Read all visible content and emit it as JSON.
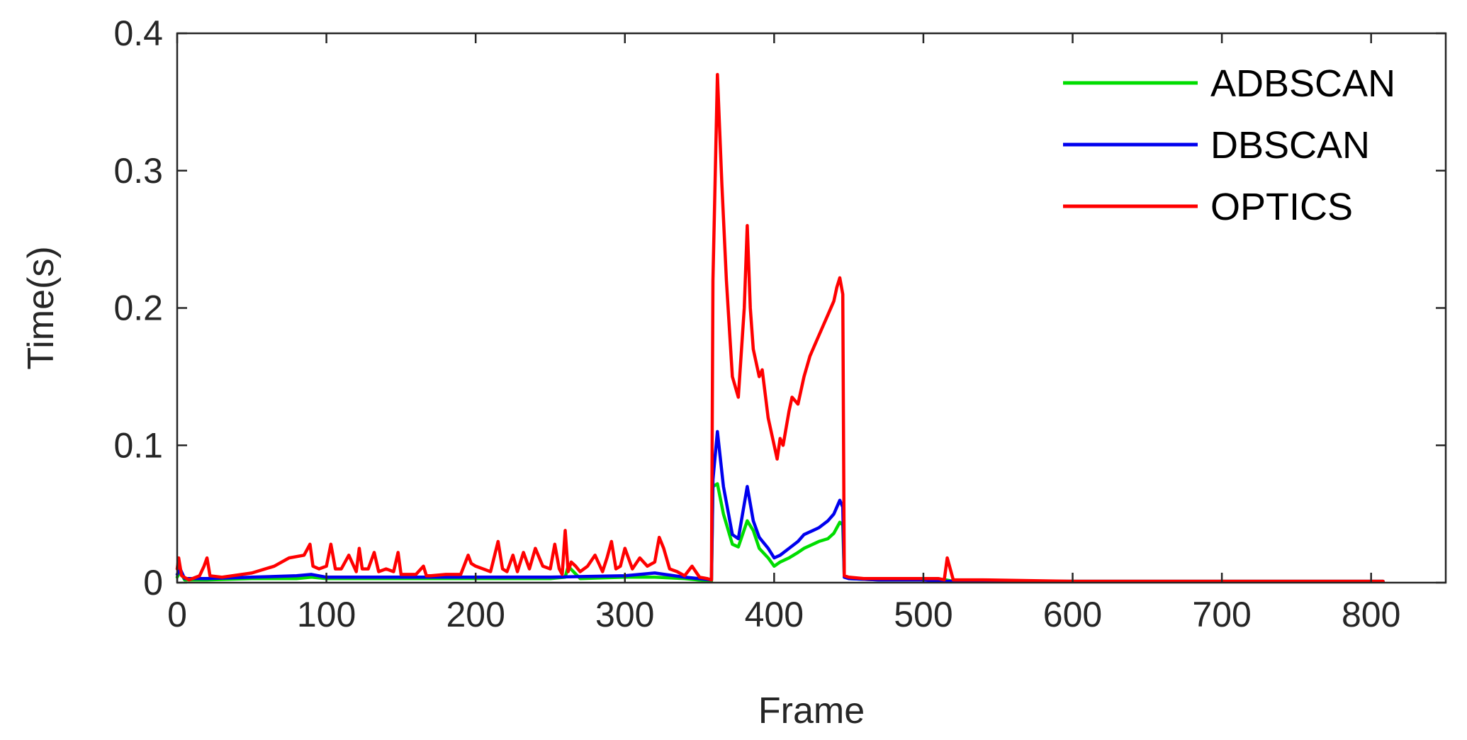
{
  "chart_data": {
    "type": "line",
    "title": "",
    "xlabel": "Frame",
    "ylabel": "Time(s)",
    "xlim": [
      0,
      850
    ],
    "ylim": [
      0,
      0.4
    ],
    "xticks": [
      0,
      100,
      200,
      300,
      400,
      500,
      600,
      700,
      800
    ],
    "yticks": [
      0,
      0.1,
      0.2,
      0.3,
      0.4
    ],
    "xtick_labels": [
      "0",
      "100",
      "200",
      "300",
      "400",
      "500",
      "600",
      "700",
      "800"
    ],
    "ytick_labels": [
      "0",
      "0.1",
      "0.2",
      "0.3",
      "0.4"
    ],
    "grid": false,
    "legend_position": "top-right",
    "series": [
      {
        "name": "ADBSCAN",
        "color": "#00dd00",
        "x": [
          0,
          2,
          5,
          20,
          50,
          80,
          90,
          100,
          150,
          200,
          250,
          260,
          262,
          270,
          300,
          320,
          340,
          358,
          359,
          362,
          366,
          372,
          376,
          382,
          386,
          390,
          396,
          400,
          404,
          410,
          416,
          420,
          426,
          430,
          436,
          440,
          444,
          446,
          447,
          450,
          470,
          500,
          515,
          520,
          600,
          700,
          808
        ],
        "y": [
          0.004,
          0.008,
          0.002,
          0.002,
          0.003,
          0.003,
          0.004,
          0.003,
          0.003,
          0.003,
          0.003,
          0.004,
          0.012,
          0.003,
          0.004,
          0.004,
          0.003,
          0.001,
          0.07,
          0.072,
          0.05,
          0.028,
          0.026,
          0.045,
          0.038,
          0.025,
          0.018,
          0.012,
          0.015,
          0.018,
          0.022,
          0.025,
          0.028,
          0.03,
          0.032,
          0.036,
          0.044,
          0.042,
          0.005,
          0.003,
          0.002,
          0.002,
          0.002,
          0.001,
          0.001,
          0.001,
          0.001
        ]
      },
      {
        "name": "DBSCAN",
        "color": "#0000ee",
        "x": [
          0,
          2,
          5,
          20,
          50,
          80,
          90,
          100,
          150,
          200,
          250,
          300,
          320,
          340,
          358,
          359,
          362,
          366,
          372,
          376,
          382,
          386,
          390,
          396,
          400,
          404,
          410,
          416,
          420,
          426,
          430,
          436,
          440,
          444,
          446,
          447,
          450,
          470,
          500,
          510,
          520,
          600,
          700,
          808
        ],
        "y": [
          0.006,
          0.01,
          0.003,
          0.003,
          0.004,
          0.005,
          0.006,
          0.004,
          0.004,
          0.004,
          0.004,
          0.005,
          0.007,
          0.004,
          0.002,
          0.075,
          0.11,
          0.07,
          0.035,
          0.032,
          0.07,
          0.045,
          0.033,
          0.025,
          0.018,
          0.02,
          0.025,
          0.03,
          0.035,
          0.038,
          0.04,
          0.045,
          0.05,
          0.06,
          0.055,
          0.004,
          0.003,
          0.002,
          0.002,
          0.001,
          0.001,
          0.001,
          0.001,
          0.001
        ]
      },
      {
        "name": "OPTICS",
        "color": "#ff0000",
        "x": [
          0,
          1,
          3,
          8,
          15,
          18,
          20,
          22,
          30,
          50,
          65,
          75,
          85,
          89,
          91,
          95,
          100,
          103,
          106,
          110,
          115,
          120,
          122,
          124,
          128,
          132,
          135,
          140,
          145,
          148,
          150,
          160,
          165,
          167,
          170,
          180,
          190,
          195,
          197,
          200,
          205,
          210,
          215,
          218,
          221,
          225,
          228,
          232,
          236,
          240,
          245,
          250,
          253,
          256,
          258,
          260,
          262,
          264,
          267,
          270,
          275,
          280,
          285,
          288,
          291,
          294,
          297,
          300,
          305,
          310,
          315,
          320,
          323,
          326,
          330,
          335,
          340,
          345,
          350,
          355,
          358,
          359,
          362,
          365,
          368,
          372,
          376,
          380,
          382,
          384,
          386,
          390,
          392,
          396,
          400,
          402,
          404,
          406,
          410,
          412,
          416,
          420,
          424,
          428,
          432,
          436,
          440,
          442,
          444,
          446,
          447,
          450,
          460,
          480,
          500,
          510,
          514,
          516,
          520,
          540,
          600,
          700,
          808
        ],
        "y": [
          0.01,
          0.018,
          0.005,
          0.002,
          0.005,
          0.012,
          0.018,
          0.005,
          0.004,
          0.007,
          0.012,
          0.018,
          0.02,
          0.028,
          0.012,
          0.01,
          0.012,
          0.028,
          0.01,
          0.01,
          0.02,
          0.008,
          0.025,
          0.01,
          0.01,
          0.022,
          0.008,
          0.01,
          0.008,
          0.022,
          0.006,
          0.006,
          0.012,
          0.005,
          0.005,
          0.006,
          0.006,
          0.02,
          0.014,
          0.012,
          0.01,
          0.008,
          0.03,
          0.01,
          0.008,
          0.02,
          0.008,
          0.022,
          0.01,
          0.025,
          0.012,
          0.01,
          0.028,
          0.01,
          0.006,
          0.038,
          0.008,
          0.015,
          0.012,
          0.008,
          0.012,
          0.02,
          0.008,
          0.018,
          0.03,
          0.01,
          0.012,
          0.025,
          0.01,
          0.018,
          0.012,
          0.015,
          0.033,
          0.025,
          0.01,
          0.008,
          0.005,
          0.012,
          0.004,
          0.003,
          0.002,
          0.22,
          0.37,
          0.29,
          0.22,
          0.15,
          0.135,
          0.2,
          0.26,
          0.2,
          0.17,
          0.15,
          0.155,
          0.12,
          0.1,
          0.09,
          0.105,
          0.1,
          0.125,
          0.135,
          0.13,
          0.15,
          0.165,
          0.175,
          0.185,
          0.195,
          0.205,
          0.215,
          0.222,
          0.21,
          0.005,
          0.004,
          0.003,
          0.003,
          0.003,
          0.003,
          0.002,
          0.018,
          0.002,
          0.002,
          0.001,
          0.001,
          0.001
        ]
      }
    ]
  }
}
